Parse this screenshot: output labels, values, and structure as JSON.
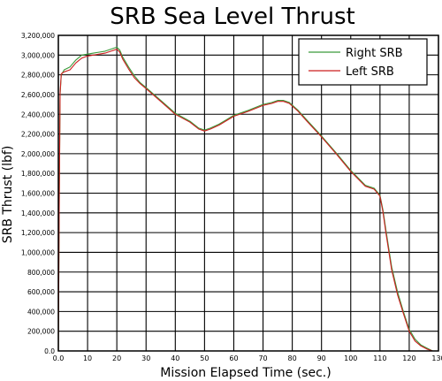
{
  "chart_data": {
    "type": "line",
    "title": "SRB Sea Level Thrust",
    "xlabel": "Mission Elapsed Time (sec.)",
    "ylabel": "SRB Thrust (lbf)",
    "xlim": [
      0,
      130
    ],
    "ylim": [
      0,
      3200000
    ],
    "x_ticks": [
      0,
      10,
      20,
      30,
      40,
      50,
      60,
      70,
      80,
      90,
      100,
      110,
      120,
      130
    ],
    "x_tick_labels": [
      "0.0",
      "10",
      "20",
      "30",
      "40",
      "50",
      "60",
      "70",
      "80",
      "90",
      "100",
      "110",
      "120",
      "130"
    ],
    "y_ticks": [
      0,
      200000,
      400000,
      600000,
      800000,
      1000000,
      1200000,
      1400000,
      1600000,
      1800000,
      2000000,
      2200000,
      2400000,
      2600000,
      2800000,
      3000000,
      3200000
    ],
    "y_tick_labels": [
      "0.0",
      "200,000",
      "400,000",
      "600,000",
      "800,000",
      "1,000,000",
      "1,200,000",
      "1,400,000",
      "1,600,000",
      "1,800,000",
      "2,000,000",
      "2,200,000",
      "2,400,000",
      "2,600,000",
      "2,800,000",
      "3,000,000",
      "3,200,000"
    ],
    "grid": true,
    "legend_position": "top-right",
    "series": [
      {
        "name": "Right SRB",
        "color": "#3a9a3a",
        "x": [
          0,
          0.3,
          0.6,
          1,
          2,
          4,
          6,
          8,
          10,
          12,
          14,
          16,
          18,
          20,
          21,
          22,
          24,
          26,
          28,
          30,
          35,
          40,
          45,
          48,
          50,
          52,
          55,
          60,
          65,
          70,
          73,
          75,
          77,
          79,
          82,
          85,
          90,
          95,
          100,
          105,
          108,
          110,
          111,
          112,
          114,
          116,
          118,
          120,
          122,
          124,
          126,
          128
        ],
        "y": [
          0,
          1500000,
          2600000,
          2800000,
          2850000,
          2880000,
          2950000,
          3000000,
          3010000,
          3020000,
          3030000,
          3040000,
          3060000,
          3080000,
          3050000,
          2980000,
          2880000,
          2790000,
          2720000,
          2670000,
          2540000,
          2410000,
          2330000,
          2260000,
          2240000,
          2260000,
          2300000,
          2390000,
          2440000,
          2500000,
          2520000,
          2540000,
          2540000,
          2520000,
          2440000,
          2340000,
          2180000,
          2010000,
          1830000,
          1680000,
          1650000,
          1580000,
          1430000,
          1230000,
          850000,
          600000,
          400000,
          220000,
          120000,
          60000,
          30000,
          0
        ]
      },
      {
        "name": "Left SRB",
        "color": "#cc1f1f",
        "x": [
          0,
          0.3,
          0.6,
          1,
          2,
          4,
          6,
          8,
          10,
          12,
          14,
          16,
          18,
          20,
          21,
          22,
          24,
          26,
          28,
          30,
          35,
          40,
          45,
          48,
          50,
          52,
          55,
          60,
          65,
          70,
          73,
          75,
          77,
          79,
          82,
          85,
          90,
          95,
          100,
          105,
          108,
          110,
          111,
          112,
          114,
          116,
          118,
          120,
          122,
          124,
          126,
          128
        ],
        "y": [
          0,
          1500000,
          2620000,
          2810000,
          2830000,
          2850000,
          2920000,
          2970000,
          2990000,
          3000000,
          3010000,
          3020000,
          3040000,
          3060000,
          3030000,
          2960000,
          2860000,
          2770000,
          2710000,
          2660000,
          2530000,
          2400000,
          2320000,
          2250000,
          2230000,
          2250000,
          2290000,
          2380000,
          2430000,
          2490000,
          2510000,
          2530000,
          2530000,
          2510000,
          2430000,
          2330000,
          2170000,
          2000000,
          1820000,
          1670000,
          1640000,
          1570000,
          1410000,
          1200000,
          820000,
          570000,
          380000,
          200000,
          100000,
          50000,
          20000,
          0
        ]
      }
    ]
  }
}
